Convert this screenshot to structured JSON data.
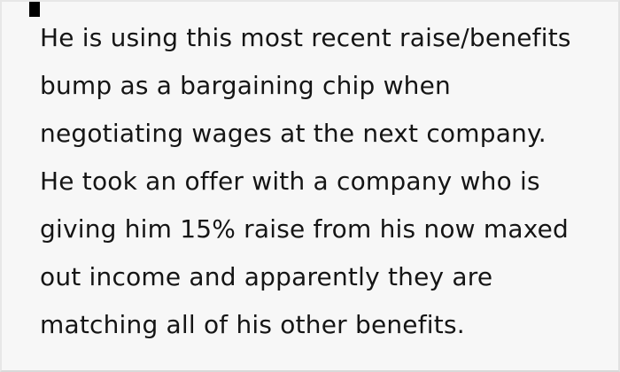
{
  "card": {
    "type": "pull-quote-image",
    "background_color": "#f7f7f7",
    "border_color": "#e2e2e2",
    "accent_bar_color": "#000000",
    "text_color": "#151515"
  },
  "quote": {
    "lines": [
      "He is using this most recent raise/benefits",
      "bump as a bargaining chip when",
      "negotiating wages at the next company.",
      "He took an offer with a company who is",
      "giving him 15% raise from his now maxed",
      "out income and apparently they are",
      "matching all of his other benefits."
    ]
  }
}
